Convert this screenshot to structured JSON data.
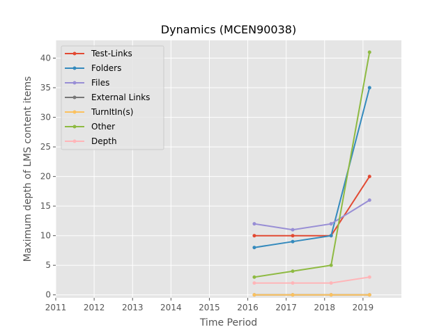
{
  "chart_data": {
    "type": "line",
    "title": "Dynamics (MCEN90038)",
    "xlabel": "Time Period",
    "ylabel": "Maximum depth of LMS content items",
    "xlim": [
      2011,
      2020
    ],
    "ylim": [
      -0.5,
      43
    ],
    "x_ticks": [
      "2011",
      "2012",
      "2013",
      "2014",
      "2015",
      "2016",
      "2017",
      "2018",
      "2019"
    ],
    "y_ticks": [
      "0",
      "5",
      "10",
      "15",
      "20",
      "25",
      "30",
      "35",
      "40"
    ],
    "grid": true,
    "legend_position": "upper-left",
    "x": [
      2016.17,
      2017.17,
      2018.17,
      2019.17
    ],
    "series": [
      {
        "name": "Test-Links",
        "color": "#E24A33",
        "values": [
          10,
          10,
          10,
          20
        ]
      },
      {
        "name": "Folders",
        "color": "#348ABD",
        "values": [
          8,
          9,
          10,
          35
        ]
      },
      {
        "name": "Files",
        "color": "#988ED5",
        "values": [
          12,
          11,
          12,
          16
        ]
      },
      {
        "name": "External Links",
        "color": "#777777",
        "values": [
          0,
          0,
          0,
          0
        ]
      },
      {
        "name": "TurnItIn(s)",
        "color": "#FBC15E",
        "values": [
          0,
          0,
          0,
          0
        ]
      },
      {
        "name": "Other",
        "color": "#8EBA42",
        "values": [
          3,
          4,
          5,
          41
        ]
      },
      {
        "name": "Depth",
        "color": "#FFB5B8",
        "values": [
          2,
          2,
          2,
          3
        ]
      }
    ]
  }
}
